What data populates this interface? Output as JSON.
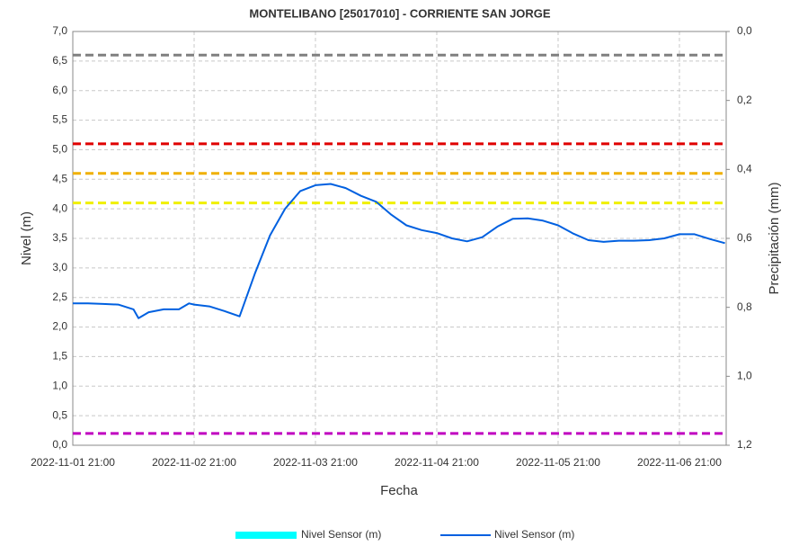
{
  "chart_data": {
    "type": "line",
    "title": "MONTELIBANO [25017010] - CORRIENTE SAN JORGE",
    "x_label": "Fecha",
    "y_label": "Nivel (m)",
    "y2_label": "Precipitación (mm)",
    "x": [
      "2022-11-01 21:00",
      "2022-11-02 00:00",
      "2022-11-02 03:00",
      "2022-11-02 06:00",
      "2022-11-02 09:00",
      "2022-11-02 10:00",
      "2022-11-02 12:00",
      "2022-11-02 15:00",
      "2022-11-02 18:00",
      "2022-11-02 20:00",
      "2022-11-02 21:00",
      "2022-11-03 00:00",
      "2022-11-03 03:00",
      "2022-11-03 06:00",
      "2022-11-03 09:00",
      "2022-11-03 12:00",
      "2022-11-03 15:00",
      "2022-11-03 18:00",
      "2022-11-03 21:00",
      "2022-11-04 00:00",
      "2022-11-04 03:00",
      "2022-11-04 06:00",
      "2022-11-04 09:00",
      "2022-11-04 12:00",
      "2022-11-04 15:00",
      "2022-11-04 18:00",
      "2022-11-04 21:00",
      "2022-11-05 00:00",
      "2022-11-05 03:00",
      "2022-11-05 06:00",
      "2022-11-05 09:00",
      "2022-11-05 12:00",
      "2022-11-05 15:00",
      "2022-11-05 18:00",
      "2022-11-05 21:00",
      "2022-11-06 00:00",
      "2022-11-06 03:00",
      "2022-11-06 06:00",
      "2022-11-06 09:00",
      "2022-11-06 12:00",
      "2022-11-06 15:00",
      "2022-11-06 18:00",
      "2022-11-06 21:00",
      "2022-11-07 00:00",
      "2022-11-07 03:00",
      "2022-11-07 06:00"
    ],
    "series": [
      {
        "name": "Nivel Sensor (m)",
        "color": "#00ffff",
        "type": "bar",
        "axis": "y2",
        "values": [
          null,
          null,
          null,
          null,
          null,
          null,
          null,
          null,
          null,
          null,
          null,
          null,
          null,
          null,
          null,
          null,
          null,
          null,
          null,
          null,
          null,
          null,
          null,
          null,
          null,
          null,
          null,
          null,
          null,
          null,
          null,
          null,
          null,
          null,
          null,
          null,
          null,
          null,
          null,
          null,
          null,
          null,
          null,
          null,
          null,
          null
        ]
      },
      {
        "name": "Nivel Sensor (m)",
        "color": "#0060e0",
        "type": "line",
        "values": [
          2.4,
          2.4,
          2.39,
          2.38,
          2.3,
          2.15,
          2.25,
          2.3,
          2.3,
          2.4,
          2.38,
          2.35,
          2.27,
          2.18,
          2.9,
          3.55,
          4.0,
          4.3,
          4.4,
          4.42,
          4.35,
          4.22,
          4.12,
          3.9,
          3.72,
          3.64,
          3.59,
          3.5,
          3.45,
          3.52,
          3.7,
          3.83,
          3.84,
          3.8,
          3.72,
          3.58,
          3.47,
          3.44,
          3.46,
          3.46,
          3.47,
          3.5,
          3.57,
          3.57,
          3.49,
          3.42
        ]
      }
    ],
    "thresholds": [
      {
        "value": 6.6,
        "color": "#808080"
      },
      {
        "value": 5.1,
        "color": "#e00000"
      },
      {
        "value": 4.6,
        "color": "#f0b000"
      },
      {
        "value": 4.1,
        "color": "#f0f000"
      },
      {
        "value": 0.2,
        "color": "#c000c0"
      }
    ],
    "xlim": [
      "2022-11-01 21:00",
      "2022-11-07 06:15"
    ],
    "xticks": [
      "2022-11-01 21:00",
      "2022-11-02 21:00",
      "2022-11-03 21:00",
      "2022-11-04 21:00",
      "2022-11-05 21:00",
      "2022-11-06 21:00"
    ],
    "ylim": [
      0,
      7
    ],
    "yticks": [
      {
        "value": 0,
        "label": "0,0"
      },
      {
        "value": 0.5,
        "label": "0,5"
      },
      {
        "value": 1,
        "label": "1,0"
      },
      {
        "value": 1.5,
        "label": "1,5"
      },
      {
        "value": 2,
        "label": "2,0"
      },
      {
        "value": 2.5,
        "label": "2,5"
      },
      {
        "value": 3,
        "label": "3,0"
      },
      {
        "value": 3.5,
        "label": "3,5"
      },
      {
        "value": 4,
        "label": "4,0"
      },
      {
        "value": 4.5,
        "label": "4,5"
      },
      {
        "value": 5,
        "label": "5,0"
      },
      {
        "value": 5.5,
        "label": "5,5"
      },
      {
        "value": 6,
        "label": "6,0"
      },
      {
        "value": 6.5,
        "label": "6,5"
      },
      {
        "value": 7,
        "label": "7,0"
      }
    ],
    "y2lim": [
      1.2,
      0
    ],
    "y2ticks": [
      {
        "value": 0,
        "label": "0,0"
      },
      {
        "value": 0.2,
        "label": "0,2"
      },
      {
        "value": 0.4,
        "label": "0,4"
      },
      {
        "value": 0.6,
        "label": "0,6"
      },
      {
        "value": 0.8,
        "label": "0,8"
      },
      {
        "value": 1,
        "label": "1,0"
      },
      {
        "value": 1.2,
        "label": "1,2"
      }
    ],
    "grid": true
  }
}
